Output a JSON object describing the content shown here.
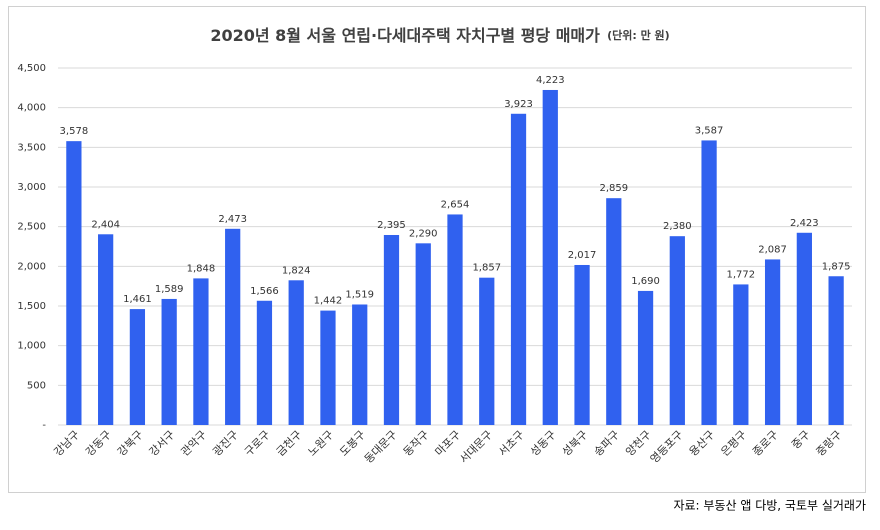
{
  "chart_data": {
    "type": "bar",
    "title": "2020년 8월 서울 연립·다세대주택 자치구별 평당 매매가",
    "subtitle": "(단위: 만 원)",
    "source": "자료: 부동산 앱 다방, 국토부 실거래가",
    "categories": [
      "강남구",
      "강동구",
      "강북구",
      "강서구",
      "관악구",
      "광진구",
      "구로구",
      "금천구",
      "노원구",
      "도봉구",
      "동대문구",
      "동작구",
      "마포구",
      "서대문구",
      "서초구",
      "성동구",
      "성북구",
      "송파구",
      "양천구",
      "영등포구",
      "용산구",
      "은평구",
      "종로구",
      "중구",
      "중랑구"
    ],
    "values": [
      3578,
      2404,
      1461,
      1589,
      1848,
      2473,
      1566,
      1824,
      1442,
      1519,
      2395,
      2290,
      2654,
      1857,
      3923,
      4223,
      2017,
      2859,
      1690,
      2380,
      3587,
      1772,
      2087,
      2423,
      1875
    ],
    "value_labels": [
      "3,578",
      "2,404",
      "1,461",
      "1,589",
      "1,848",
      "2,473",
      "1,566",
      "1,824",
      "1,442",
      "1,519",
      "2,395",
      "2,290",
      "2,654",
      "1,857",
      "3,923",
      "4,223",
      "2,017",
      "2,859",
      "1,690",
      "2,380",
      "3,587",
      "1,772",
      "2,087",
      "2,423",
      "1,875"
    ],
    "color": "#3061ef",
    "ylim": [
      0,
      4500
    ],
    "yticks": [
      {
        "value": 0,
        "label": "-"
      },
      500,
      {
        "value": 1000,
        "label": "1,000"
      },
      {
        "value": 1500,
        "label": "1,500"
      },
      {
        "value": 2000,
        "label": "2,000"
      },
      {
        "value": 2500,
        "label": "2,500"
      },
      {
        "value": 3000,
        "label": "3,000"
      },
      {
        "value": 3500,
        "label": "3,500"
      },
      {
        "value": 4000,
        "label": "4,000"
      },
      {
        "value": 4500,
        "label": "4,500"
      }
    ],
    "grid": true
  }
}
